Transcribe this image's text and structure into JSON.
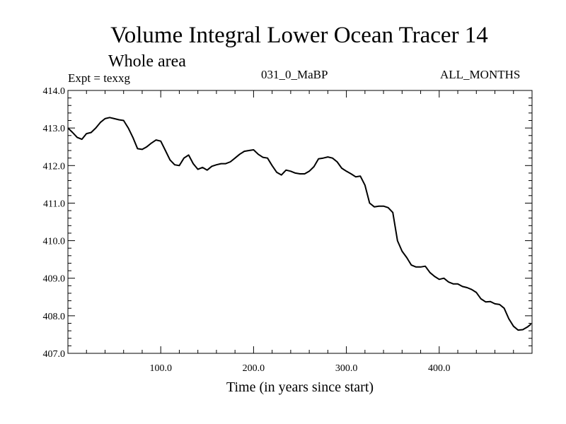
{
  "chart_data": {
    "type": "line",
    "title": "Volume Integral Lower Ocean Tracer 14",
    "subtitle": "Whole area",
    "experiment_label": "Expt = texxg",
    "period_label": "031_0_MaBP",
    "months_label": "ALL_MONTHS",
    "xlabel": "Time (in years since start)",
    "ylabel": "",
    "xlim": [
      0,
      500
    ],
    "ylim": [
      407.0,
      414.0
    ],
    "grid": false,
    "x_ticks": [
      100,
      200,
      300,
      400
    ],
    "x_tick_labels": [
      "100.0",
      "200.0",
      "300.0",
      "400.0"
    ],
    "y_ticks": [
      407,
      408,
      409,
      410,
      411,
      412,
      413,
      414
    ],
    "y_tick_labels": [
      "407.0",
      "408.0",
      "409.0",
      "410.0",
      "411.0",
      "412.0",
      "413.0",
      "414.0"
    ],
    "series": [
      {
        "name": "Lower Ocean Tracer 14",
        "color": "#000000",
        "x": [
          0,
          5,
          10,
          15,
          20,
          25,
          30,
          35,
          40,
          45,
          50,
          55,
          60,
          65,
          70,
          75,
          80,
          85,
          90,
          95,
          100,
          105,
          110,
          115,
          120,
          125,
          130,
          135,
          140,
          145,
          150,
          155,
          160,
          165,
          170,
          175,
          180,
          185,
          190,
          195,
          200,
          205,
          210,
          215,
          220,
          225,
          230,
          235,
          240,
          245,
          250,
          255,
          260,
          265,
          270,
          275,
          280,
          285,
          290,
          295,
          300,
          305,
          310,
          315,
          320,
          325,
          330,
          335,
          340,
          345,
          350,
          355,
          360,
          365,
          370,
          375,
          380,
          385,
          390,
          395,
          400,
          405,
          410,
          415,
          420,
          425,
          430,
          435,
          440,
          445,
          450,
          455,
          460,
          465,
          470,
          475,
          480,
          485,
          490,
          495,
          499
        ],
        "values": [
          413.0,
          412.88,
          412.75,
          412.7,
          412.85,
          412.88,
          413.0,
          413.15,
          413.25,
          413.28,
          413.25,
          413.22,
          413.2,
          413.0,
          412.75,
          412.45,
          412.43,
          412.5,
          412.6,
          412.68,
          412.65,
          412.4,
          412.15,
          412.02,
          412.0,
          412.2,
          412.28,
          412.05,
          411.9,
          411.95,
          411.88,
          411.98,
          412.02,
          412.05,
          412.05,
          412.1,
          412.2,
          412.3,
          412.38,
          412.4,
          412.42,
          412.3,
          412.22,
          412.2,
          412.0,
          411.82,
          411.75,
          411.88,
          411.85,
          411.8,
          411.78,
          411.78,
          411.85,
          411.97,
          412.18,
          412.2,
          412.23,
          412.2,
          412.1,
          411.93,
          411.85,
          411.78,
          411.7,
          411.72,
          411.48,
          411.0,
          410.9,
          410.92,
          410.92,
          410.88,
          410.75,
          410.0,
          409.72,
          409.55,
          409.35,
          409.3,
          409.3,
          409.32,
          409.15,
          409.05,
          408.97,
          409.0,
          408.9,
          408.85,
          408.85,
          408.78,
          408.75,
          408.7,
          408.62,
          408.45,
          408.37,
          408.38,
          408.32,
          408.3,
          408.2,
          407.92,
          407.72,
          407.62,
          407.63,
          407.7,
          407.78
        ]
      }
    ]
  }
}
